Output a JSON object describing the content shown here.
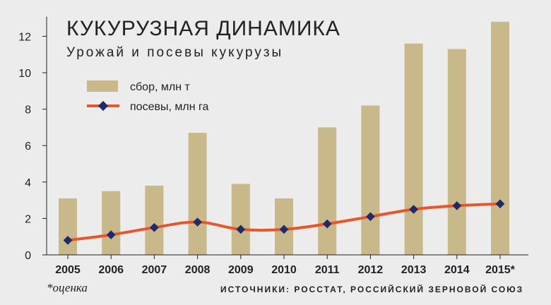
{
  "title": "КУКУРУЗНАЯ ДИНАМИКА",
  "subtitle": "Урожай и посевы кукурузы",
  "footnote": "*оценка",
  "source": "ИСТОЧНИКИ: РОССТАТ, РОССИЙСКИЙ ЗЕРНОВОЙ СОЮЗ",
  "colors": {
    "bar": "#c9b88a",
    "line": "#e8562a",
    "marker": "#1f2a6b",
    "axis": "#222222",
    "background": "#ececec"
  },
  "chart_data": {
    "type": "bar",
    "categories": [
      "2005",
      "2006",
      "2007",
      "2008",
      "2009",
      "2010",
      "2011",
      "2012",
      "2013",
      "2014",
      "2015*"
    ],
    "series": [
      {
        "name": "сбор, млн т",
        "type": "bar",
        "values": [
          3.1,
          3.5,
          3.8,
          6.7,
          3.9,
          3.1,
          7.0,
          8.2,
          11.6,
          11.3,
          12.8
        ]
      },
      {
        "name": "посевы, млн га",
        "type": "line",
        "values": [
          0.8,
          1.1,
          1.5,
          1.8,
          1.4,
          1.4,
          1.7,
          2.1,
          2.5,
          2.7,
          2.8
        ]
      }
    ],
    "yticks": [
      "0",
      "2",
      "4",
      "6",
      "8",
      "10",
      "12"
    ],
    "ylim": [
      0,
      13
    ],
    "xlabel": "",
    "ylabel": "",
    "grid": false,
    "legend_position": "top-left"
  }
}
